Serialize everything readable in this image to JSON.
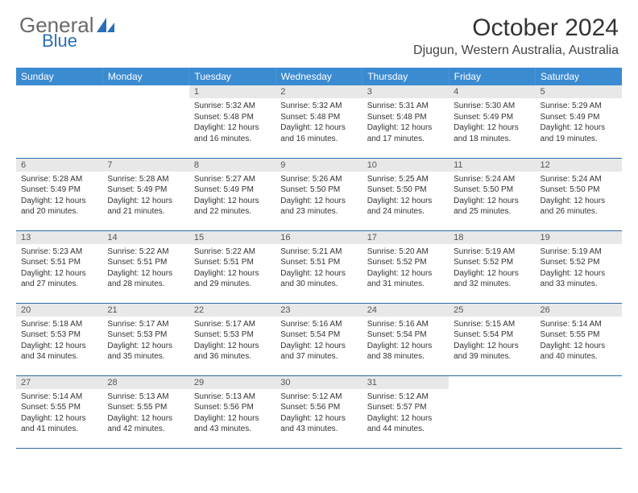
{
  "brand": {
    "part1": "General",
    "part2": "Blue"
  },
  "title": "October 2024",
  "location": "Djugun, Western Australia, Australia",
  "colors": {
    "header_bg": "#3b8bd1",
    "row_divider": "#2d6aa8",
    "daynum_bg": "#e8e8e8",
    "logo_gray": "#6a6a6a",
    "logo_blue": "#2a6fb5"
  },
  "day_headers": [
    "Sunday",
    "Monday",
    "Tuesday",
    "Wednesday",
    "Thursday",
    "Friday",
    "Saturday"
  ],
  "weeks": [
    [
      {
        "n": "",
        "sunrise": "",
        "sunset": "",
        "daylight": ""
      },
      {
        "n": "",
        "sunrise": "",
        "sunset": "",
        "daylight": ""
      },
      {
        "n": "1",
        "sunrise": "Sunrise: 5:32 AM",
        "sunset": "Sunset: 5:48 PM",
        "daylight": "Daylight: 12 hours and 16 minutes."
      },
      {
        "n": "2",
        "sunrise": "Sunrise: 5:32 AM",
        "sunset": "Sunset: 5:48 PM",
        "daylight": "Daylight: 12 hours and 16 minutes."
      },
      {
        "n": "3",
        "sunrise": "Sunrise: 5:31 AM",
        "sunset": "Sunset: 5:48 PM",
        "daylight": "Daylight: 12 hours and 17 minutes."
      },
      {
        "n": "4",
        "sunrise": "Sunrise: 5:30 AM",
        "sunset": "Sunset: 5:49 PM",
        "daylight": "Daylight: 12 hours and 18 minutes."
      },
      {
        "n": "5",
        "sunrise": "Sunrise: 5:29 AM",
        "sunset": "Sunset: 5:49 PM",
        "daylight": "Daylight: 12 hours and 19 minutes."
      }
    ],
    [
      {
        "n": "6",
        "sunrise": "Sunrise: 5:28 AM",
        "sunset": "Sunset: 5:49 PM",
        "daylight": "Daylight: 12 hours and 20 minutes."
      },
      {
        "n": "7",
        "sunrise": "Sunrise: 5:28 AM",
        "sunset": "Sunset: 5:49 PM",
        "daylight": "Daylight: 12 hours and 21 minutes."
      },
      {
        "n": "8",
        "sunrise": "Sunrise: 5:27 AM",
        "sunset": "Sunset: 5:49 PM",
        "daylight": "Daylight: 12 hours and 22 minutes."
      },
      {
        "n": "9",
        "sunrise": "Sunrise: 5:26 AM",
        "sunset": "Sunset: 5:50 PM",
        "daylight": "Daylight: 12 hours and 23 minutes."
      },
      {
        "n": "10",
        "sunrise": "Sunrise: 5:25 AM",
        "sunset": "Sunset: 5:50 PM",
        "daylight": "Daylight: 12 hours and 24 minutes."
      },
      {
        "n": "11",
        "sunrise": "Sunrise: 5:24 AM",
        "sunset": "Sunset: 5:50 PM",
        "daylight": "Daylight: 12 hours and 25 minutes."
      },
      {
        "n": "12",
        "sunrise": "Sunrise: 5:24 AM",
        "sunset": "Sunset: 5:50 PM",
        "daylight": "Daylight: 12 hours and 26 minutes."
      }
    ],
    [
      {
        "n": "13",
        "sunrise": "Sunrise: 5:23 AM",
        "sunset": "Sunset: 5:51 PM",
        "daylight": "Daylight: 12 hours and 27 minutes."
      },
      {
        "n": "14",
        "sunrise": "Sunrise: 5:22 AM",
        "sunset": "Sunset: 5:51 PM",
        "daylight": "Daylight: 12 hours and 28 minutes."
      },
      {
        "n": "15",
        "sunrise": "Sunrise: 5:22 AM",
        "sunset": "Sunset: 5:51 PM",
        "daylight": "Daylight: 12 hours and 29 minutes."
      },
      {
        "n": "16",
        "sunrise": "Sunrise: 5:21 AM",
        "sunset": "Sunset: 5:51 PM",
        "daylight": "Daylight: 12 hours and 30 minutes."
      },
      {
        "n": "17",
        "sunrise": "Sunrise: 5:20 AM",
        "sunset": "Sunset: 5:52 PM",
        "daylight": "Daylight: 12 hours and 31 minutes."
      },
      {
        "n": "18",
        "sunrise": "Sunrise: 5:19 AM",
        "sunset": "Sunset: 5:52 PM",
        "daylight": "Daylight: 12 hours and 32 minutes."
      },
      {
        "n": "19",
        "sunrise": "Sunrise: 5:19 AM",
        "sunset": "Sunset: 5:52 PM",
        "daylight": "Daylight: 12 hours and 33 minutes."
      }
    ],
    [
      {
        "n": "20",
        "sunrise": "Sunrise: 5:18 AM",
        "sunset": "Sunset: 5:53 PM",
        "daylight": "Daylight: 12 hours and 34 minutes."
      },
      {
        "n": "21",
        "sunrise": "Sunrise: 5:17 AM",
        "sunset": "Sunset: 5:53 PM",
        "daylight": "Daylight: 12 hours and 35 minutes."
      },
      {
        "n": "22",
        "sunrise": "Sunrise: 5:17 AM",
        "sunset": "Sunset: 5:53 PM",
        "daylight": "Daylight: 12 hours and 36 minutes."
      },
      {
        "n": "23",
        "sunrise": "Sunrise: 5:16 AM",
        "sunset": "Sunset: 5:54 PM",
        "daylight": "Daylight: 12 hours and 37 minutes."
      },
      {
        "n": "24",
        "sunrise": "Sunrise: 5:16 AM",
        "sunset": "Sunset: 5:54 PM",
        "daylight": "Daylight: 12 hours and 38 minutes."
      },
      {
        "n": "25",
        "sunrise": "Sunrise: 5:15 AM",
        "sunset": "Sunset: 5:54 PM",
        "daylight": "Daylight: 12 hours and 39 minutes."
      },
      {
        "n": "26",
        "sunrise": "Sunrise: 5:14 AM",
        "sunset": "Sunset: 5:55 PM",
        "daylight": "Daylight: 12 hours and 40 minutes."
      }
    ],
    [
      {
        "n": "27",
        "sunrise": "Sunrise: 5:14 AM",
        "sunset": "Sunset: 5:55 PM",
        "daylight": "Daylight: 12 hours and 41 minutes."
      },
      {
        "n": "28",
        "sunrise": "Sunrise: 5:13 AM",
        "sunset": "Sunset: 5:55 PM",
        "daylight": "Daylight: 12 hours and 42 minutes."
      },
      {
        "n": "29",
        "sunrise": "Sunrise: 5:13 AM",
        "sunset": "Sunset: 5:56 PM",
        "daylight": "Daylight: 12 hours and 43 minutes."
      },
      {
        "n": "30",
        "sunrise": "Sunrise: 5:12 AM",
        "sunset": "Sunset: 5:56 PM",
        "daylight": "Daylight: 12 hours and 43 minutes."
      },
      {
        "n": "31",
        "sunrise": "Sunrise: 5:12 AM",
        "sunset": "Sunset: 5:57 PM",
        "daylight": "Daylight: 12 hours and 44 minutes."
      },
      {
        "n": "",
        "sunrise": "",
        "sunset": "",
        "daylight": ""
      },
      {
        "n": "",
        "sunrise": "",
        "sunset": "",
        "daylight": ""
      }
    ]
  ]
}
